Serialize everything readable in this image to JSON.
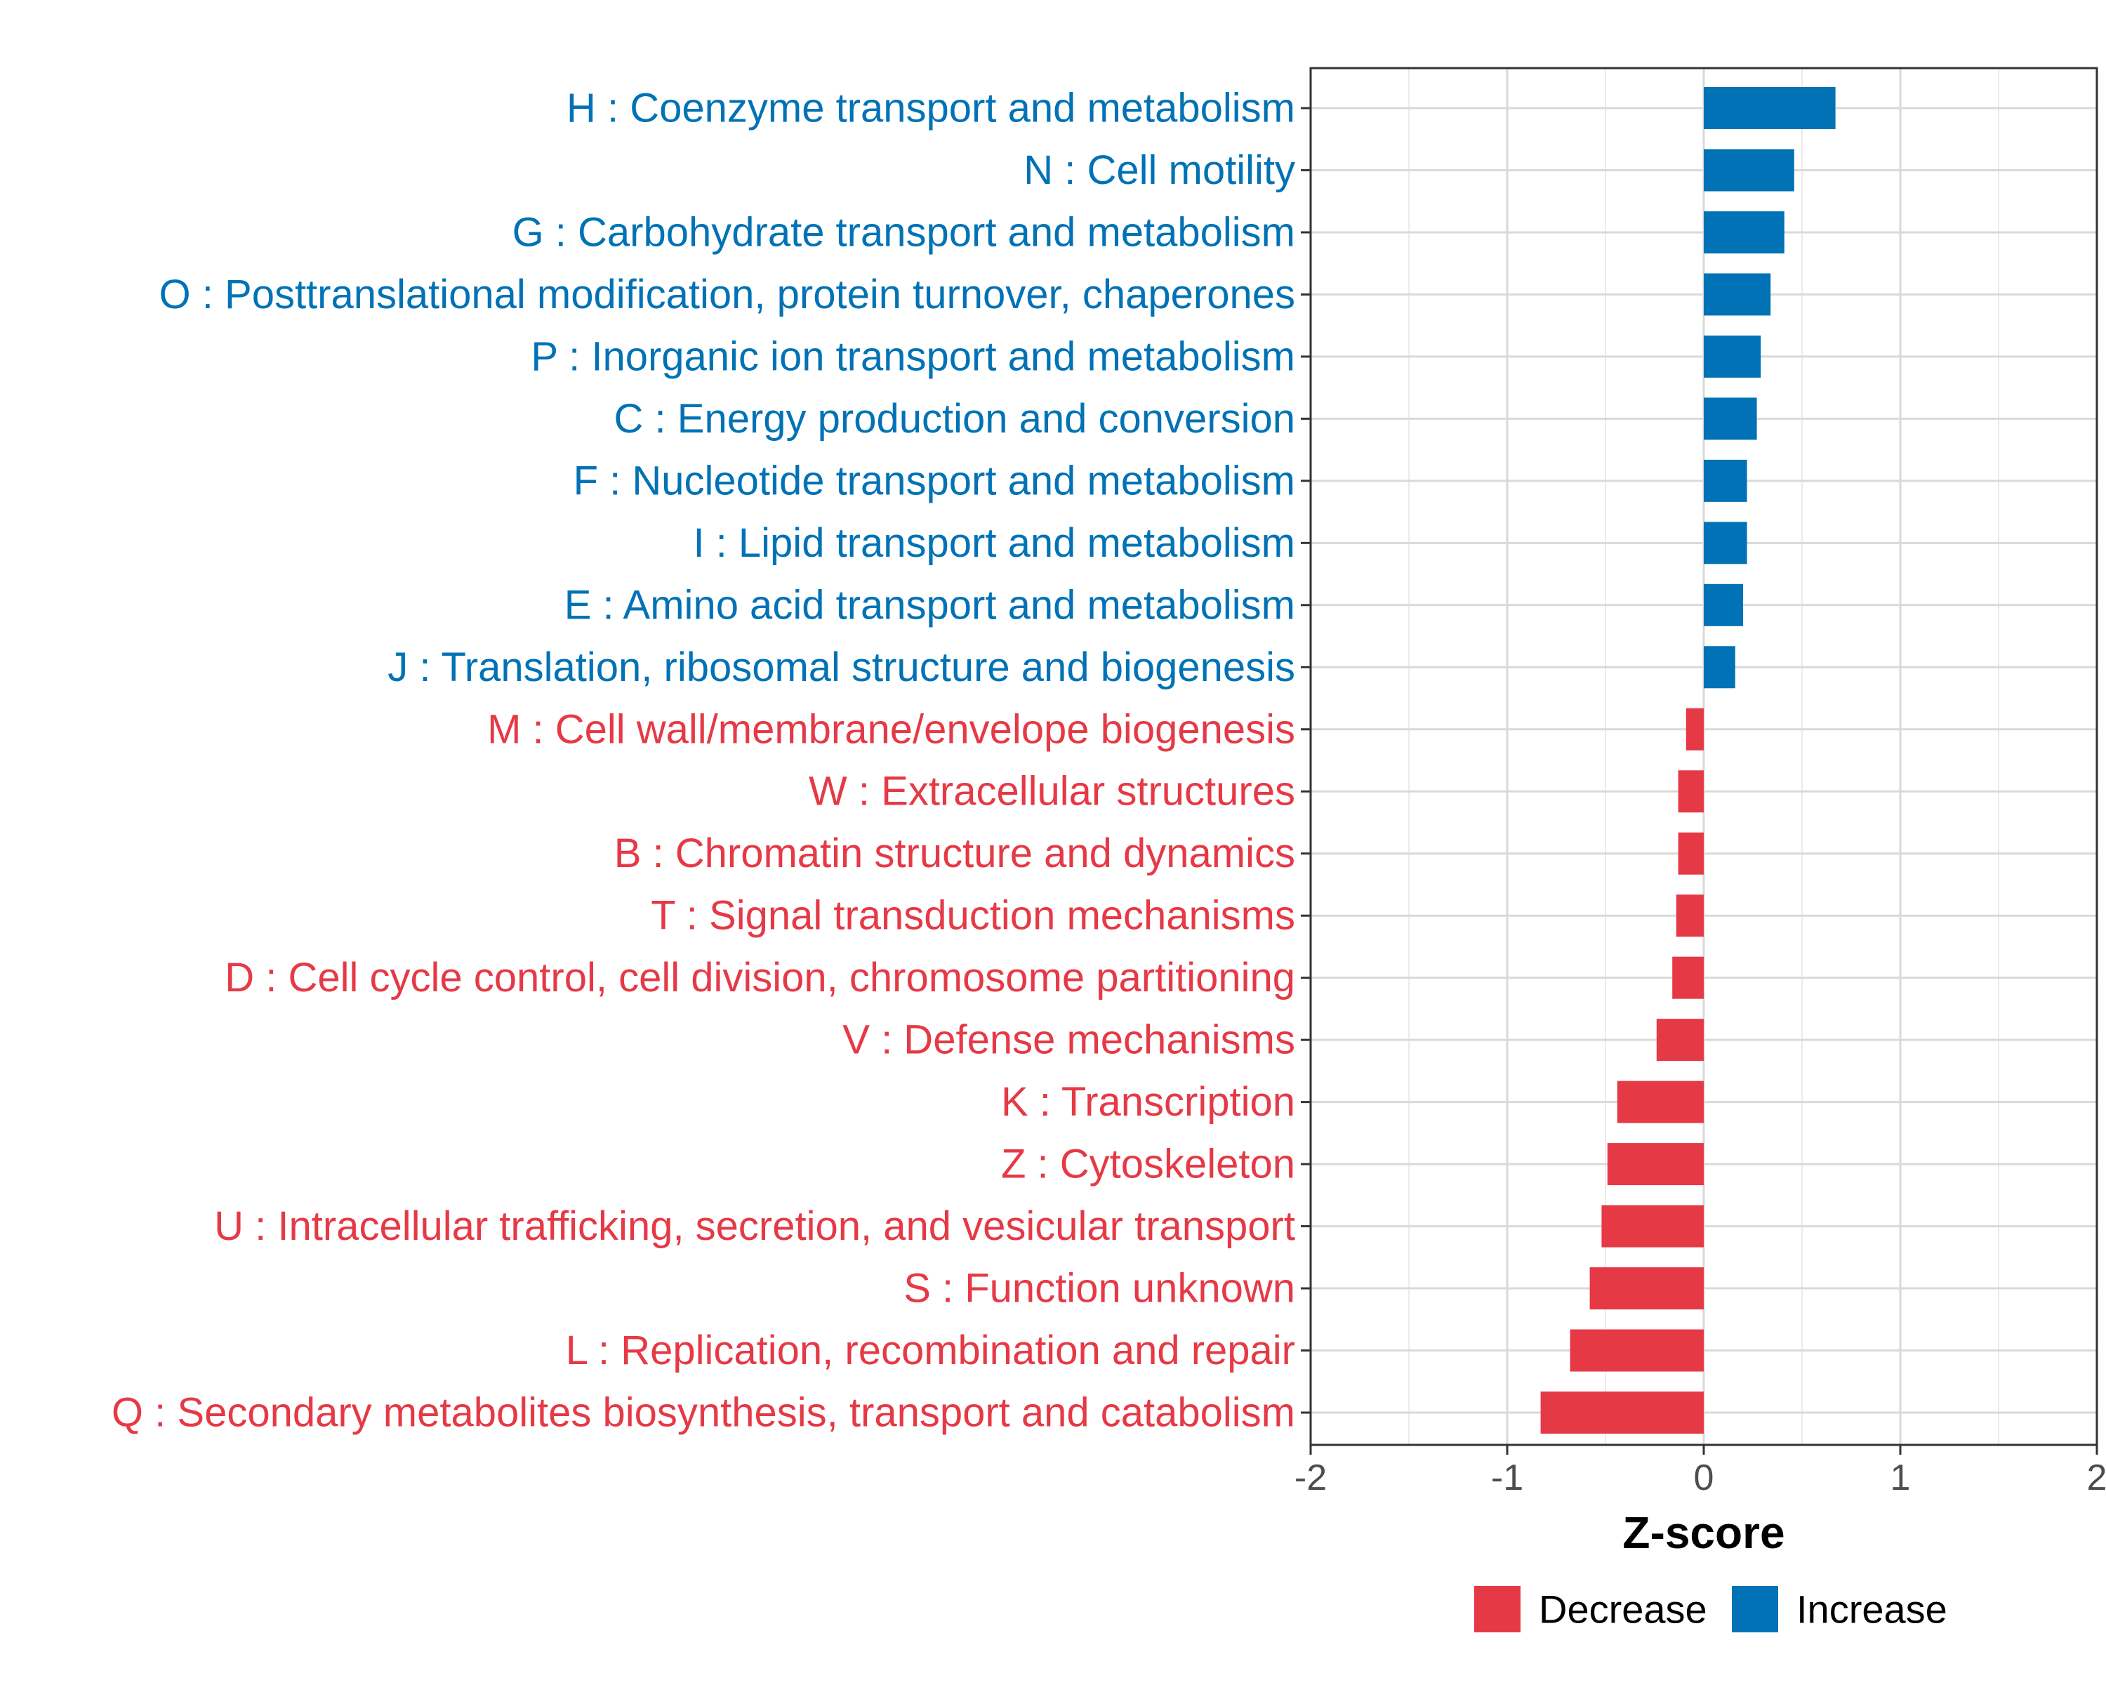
{
  "chart_data": {
    "type": "bar",
    "orientation": "horizontal",
    "title": "",
    "xlabel": "Z-score",
    "ylabel": "",
    "xlim": [
      -2,
      2
    ],
    "xticks": [
      -2,
      -1,
      0,
      1,
      2
    ],
    "xtick_labels": [
      "-2",
      "-1",
      "0",
      "1",
      "2"
    ],
    "grid": true,
    "legend_position": "bottom",
    "colors": {
      "Decrease": "#E63946",
      "Increase": "#0072B5"
    },
    "legend": [
      {
        "name": "Decrease",
        "color": "#E63946"
      },
      {
        "name": "Increase",
        "color": "#0072B5"
      }
    ],
    "categories": [
      {
        "label": "H : Coenzyme transport and metabolism",
        "value": 0.67,
        "group": "Increase"
      },
      {
        "label": "N : Cell motility",
        "value": 0.46,
        "group": "Increase"
      },
      {
        "label": "G : Carbohydrate transport and metabolism",
        "value": 0.41,
        "group": "Increase"
      },
      {
        "label": "O : Posttranslational modification, protein turnover, chaperones",
        "value": 0.34,
        "group": "Increase"
      },
      {
        "label": "P : Inorganic ion transport and metabolism",
        "value": 0.29,
        "group": "Increase"
      },
      {
        "label": "C : Energy production and conversion",
        "value": 0.27,
        "group": "Increase"
      },
      {
        "label": "F : Nucleotide transport and metabolism",
        "value": 0.22,
        "group": "Increase"
      },
      {
        "label": "I : Lipid transport and metabolism",
        "value": 0.22,
        "group": "Increase"
      },
      {
        "label": "E : Amino acid transport and metabolism",
        "value": 0.2,
        "group": "Increase"
      },
      {
        "label": "J : Translation, ribosomal structure and biogenesis",
        "value": 0.16,
        "group": "Increase"
      },
      {
        "label": "M : Cell wall/membrane/envelope biogenesis",
        "value": -0.09,
        "group": "Decrease"
      },
      {
        "label": "W : Extracellular structures",
        "value": -0.13,
        "group": "Decrease"
      },
      {
        "label": "B : Chromatin structure and dynamics",
        "value": -0.13,
        "group": "Decrease"
      },
      {
        "label": "T : Signal transduction mechanisms",
        "value": -0.14,
        "group": "Decrease"
      },
      {
        "label": "D : Cell cycle control, cell division, chromosome partitioning",
        "value": -0.16,
        "group": "Decrease"
      },
      {
        "label": "V : Defense mechanisms",
        "value": -0.24,
        "group": "Decrease"
      },
      {
        "label": "K : Transcription",
        "value": -0.44,
        "group": "Decrease"
      },
      {
        "label": "Z : Cytoskeleton",
        "value": -0.49,
        "group": "Decrease"
      },
      {
        "label": "U : Intracellular trafficking, secretion, and vesicular transport",
        "value": -0.52,
        "group": "Decrease"
      },
      {
        "label": "S : Function unknown",
        "value": -0.58,
        "group": "Decrease"
      },
      {
        "label": "L : Replication, recombination and repair",
        "value": -0.68,
        "group": "Decrease"
      },
      {
        "label": "Q : Secondary metabolites biosynthesis, transport and catabolism",
        "value": -0.83,
        "group": "Decrease"
      }
    ]
  }
}
